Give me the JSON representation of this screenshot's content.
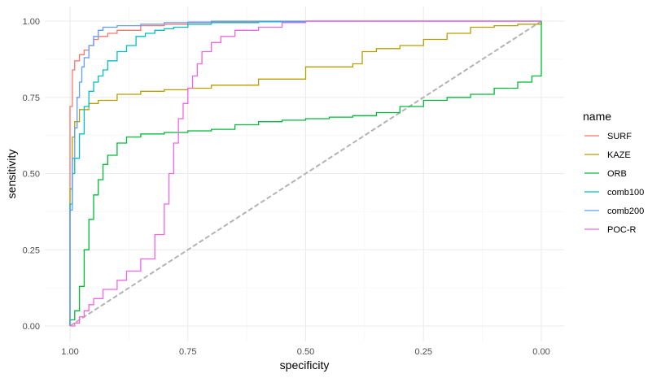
{
  "chart_data": {
    "type": "line",
    "xlabel": "specificity",
    "ylabel": "sensitivity",
    "xlim": [
      1.0,
      0.0
    ],
    "ylim": [
      0.0,
      1.0
    ],
    "x_reversed": true,
    "x_ticks": [
      "1.00",
      "0.75",
      "0.50",
      "0.25",
      "0.00"
    ],
    "y_ticks": [
      "0.00",
      "0.25",
      "0.50",
      "0.75",
      "1.00"
    ],
    "grid": true,
    "legend": {
      "title": "name",
      "position": "right"
    },
    "reference_line": {
      "x": [
        1.0,
        0.0
      ],
      "y": [
        0.0,
        1.0
      ],
      "style": "dashed",
      "color": "#b3b3b3"
    },
    "series": [
      {
        "name": "SURF",
        "color": "#F8766D",
        "x": [
          1.0,
          1.0,
          0.995,
          0.99,
          0.98,
          0.97,
          0.96,
          0.95,
          0.94,
          0.92,
          0.9,
          0.85,
          0.8,
          0.75,
          0.7,
          0.6,
          0.5,
          0.0
        ],
        "y": [
          0.0,
          0.72,
          0.84,
          0.87,
          0.89,
          0.905,
          0.92,
          0.94,
          0.95,
          0.96,
          0.97,
          0.985,
          0.99,
          0.995,
          0.997,
          0.999,
          1.0,
          1.0
        ]
      },
      {
        "name": "KAZE",
        "color": "#B79F00",
        "x": [
          1.0,
          1.0,
          0.995,
          0.99,
          0.98,
          0.96,
          0.94,
          0.9,
          0.85,
          0.8,
          0.75,
          0.7,
          0.6,
          0.5,
          0.4,
          0.38,
          0.35,
          0.3,
          0.25,
          0.2,
          0.15,
          0.1,
          0.05,
          0.0
        ],
        "y": [
          0.0,
          0.45,
          0.62,
          0.67,
          0.71,
          0.73,
          0.74,
          0.76,
          0.77,
          0.775,
          0.78,
          0.79,
          0.81,
          0.85,
          0.86,
          0.9,
          0.91,
          0.92,
          0.94,
          0.96,
          0.98,
          0.985,
          0.99,
          1.0
        ]
      },
      {
        "name": "ORB",
        "color": "#00BA38",
        "x": [
          1.0,
          1.0,
          0.99,
          0.98,
          0.97,
          0.96,
          0.95,
          0.94,
          0.93,
          0.92,
          0.9,
          0.88,
          0.85,
          0.8,
          0.75,
          0.7,
          0.65,
          0.6,
          0.55,
          0.5,
          0.45,
          0.4,
          0.35,
          0.3,
          0.25,
          0.2,
          0.15,
          0.1,
          0.05,
          0.02,
          0.0,
          0.0
        ],
        "y": [
          0.0,
          0.02,
          0.05,
          0.13,
          0.25,
          0.35,
          0.43,
          0.48,
          0.53,
          0.56,
          0.6,
          0.62,
          0.63,
          0.635,
          0.64,
          0.645,
          0.66,
          0.67,
          0.675,
          0.68,
          0.685,
          0.69,
          0.7,
          0.72,
          0.74,
          0.75,
          0.76,
          0.78,
          0.8,
          0.82,
          0.9,
          1.0
        ]
      },
      {
        "name": "comb100",
        "color": "#00BFC4",
        "x": [
          1.0,
          1.0,
          0.995,
          0.99,
          0.98,
          0.97,
          0.96,
          0.95,
          0.94,
          0.93,
          0.92,
          0.9,
          0.88,
          0.86,
          0.84,
          0.82,
          0.8,
          0.78,
          0.75,
          0.7,
          0.6,
          0.5,
          0.0
        ],
        "y": [
          0.0,
          0.4,
          0.5,
          0.55,
          0.63,
          0.72,
          0.77,
          0.8,
          0.82,
          0.84,
          0.87,
          0.9,
          0.92,
          0.95,
          0.96,
          0.97,
          0.975,
          0.98,
          0.99,
          0.995,
          0.998,
          1.0,
          1.0
        ]
      },
      {
        "name": "comb200",
        "color": "#619CFF",
        "x": [
          1.0,
          1.0,
          0.995,
          0.99,
          0.985,
          0.98,
          0.975,
          0.97,
          0.96,
          0.95,
          0.94,
          0.93,
          0.9,
          0.85,
          0.8,
          0.75,
          0.7,
          0.6,
          0.5,
          0.0
        ],
        "y": [
          0.0,
          0.38,
          0.55,
          0.65,
          0.75,
          0.8,
          0.85,
          0.88,
          0.92,
          0.95,
          0.97,
          0.98,
          0.985,
          0.99,
          0.995,
          0.997,
          1.0,
          1.0,
          1.0,
          1.0
        ]
      },
      {
        "name": "POC-R",
        "color": "#F564E3",
        "x": [
          1.0,
          0.99,
          0.98,
          0.97,
          0.96,
          0.95,
          0.93,
          0.9,
          0.88,
          0.85,
          0.82,
          0.8,
          0.79,
          0.78,
          0.77,
          0.76,
          0.75,
          0.74,
          0.73,
          0.72,
          0.7,
          0.68,
          0.65,
          0.6,
          0.55,
          0.5,
          0.0
        ],
        "y": [
          0.0,
          0.01,
          0.03,
          0.05,
          0.07,
          0.09,
          0.12,
          0.15,
          0.18,
          0.22,
          0.3,
          0.4,
          0.5,
          0.6,
          0.68,
          0.73,
          0.78,
          0.82,
          0.86,
          0.9,
          0.93,
          0.95,
          0.97,
          0.98,
          0.995,
          1.0,
          1.0
        ]
      }
    ]
  }
}
